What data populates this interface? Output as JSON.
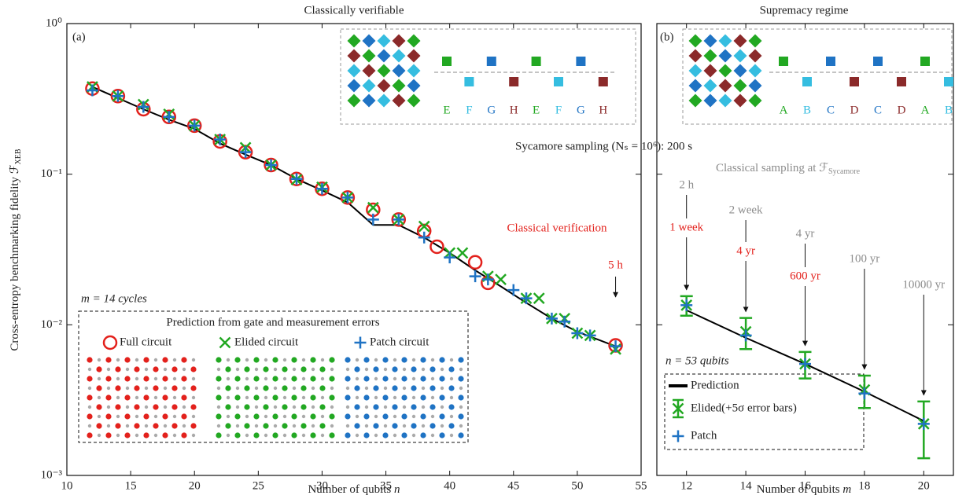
{
  "chart_data": [
    {
      "type": "scatter",
      "title": "Classically verifiable",
      "panel_label": "(a)",
      "x_label": "Number of qubits ",
      "x_label_var": "n",
      "y_label": "Cross-entropy benchmarking fidelity ℱ",
      "y_label_sub": "XEB",
      "xlim": [
        10,
        55
      ],
      "xticks": [
        10,
        15,
        20,
        25,
        30,
        35,
        40,
        45,
        50,
        55
      ],
      "ylim": [
        0.001,
        1
      ],
      "log_y": true,
      "yticks": [
        {
          "value": 0.001,
          "label": "10⁻³"
        },
        {
          "value": 0.01,
          "label": "10⁻²"
        },
        {
          "value": 0.1,
          "label": "10⁻¹"
        },
        {
          "value": 1,
          "label": "10⁰"
        }
      ],
      "series": [
        {
          "name": "Full circuit",
          "marker": "circle",
          "color": "#e3211c",
          "x": [
            12,
            14,
            16,
            18,
            20,
            22,
            24,
            26,
            28,
            30,
            32,
            34,
            36,
            38,
            39,
            42,
            43,
            53
          ],
          "values": [
            0.37,
            0.33,
            0.27,
            0.24,
            0.21,
            0.165,
            0.14,
            0.115,
            0.093,
            0.08,
            0.07,
            0.058,
            0.05,
            0.042,
            0.033,
            0.026,
            0.019,
            0.0073
          ]
        },
        {
          "name": "Elided circuit",
          "marker": "x",
          "color": "#22a822",
          "x": [
            12,
            14,
            16,
            18,
            20,
            22,
            24,
            26,
            28,
            30,
            32,
            34,
            36,
            38,
            40,
            41,
            43,
            44,
            46,
            47,
            48,
            49,
            50,
            51,
            53
          ],
          "values": [
            0.38,
            0.33,
            0.29,
            0.25,
            0.21,
            0.17,
            0.15,
            0.115,
            0.092,
            0.082,
            0.07,
            0.06,
            0.05,
            0.045,
            0.03,
            0.03,
            0.021,
            0.02,
            0.015,
            0.015,
            0.011,
            0.011,
            0.0088,
            0.0085,
            0.0069
          ]
        },
        {
          "name": "Patch circuit",
          "marker": "plus",
          "color": "#1f73c4",
          "x": [
            12,
            14,
            16,
            18,
            20,
            22,
            24,
            26,
            28,
            30,
            32,
            34,
            36,
            38,
            40,
            42,
            43,
            45,
            46,
            48,
            49,
            50,
            51,
            53
          ],
          "values": [
            0.36,
            0.33,
            0.28,
            0.24,
            0.21,
            0.17,
            0.14,
            0.115,
            0.093,
            0.08,
            0.07,
            0.05,
            0.05,
            0.038,
            0.028,
            0.021,
            0.02,
            0.017,
            0.015,
            0.011,
            0.0105,
            0.0088,
            0.0085,
            0.0072
          ]
        }
      ],
      "prediction": {
        "color": "#000000",
        "x": [
          12,
          14,
          16,
          18,
          20,
          22,
          24,
          26,
          28,
          30,
          32,
          34,
          36,
          38,
          40,
          42,
          44,
          46,
          48,
          50,
          53
        ],
        "values": [
          0.38,
          0.32,
          0.27,
          0.23,
          0.2,
          0.16,
          0.135,
          0.115,
          0.093,
          0.078,
          0.065,
          0.046,
          0.046,
          0.038,
          0.03,
          0.023,
          0.018,
          0.014,
          0.011,
          0.009,
          0.0072
        ]
      },
      "annotation": "Classical verification",
      "annotation_color": "#e3211c",
      "arrow_label": "5 h",
      "arrow_x": 53,
      "cycles_label": "m = 14 cycles",
      "legend_title": "Prediction from gate and measurement errors",
      "inset_letters": [
        "E",
        "F",
        "G",
        "H",
        "E",
        "F",
        "G",
        "H"
      ],
      "inset_letter_colors": [
        "#22a822",
        "#35bde0",
        "#1f73c4",
        "#8b2a2a",
        "#22a822",
        "#35bde0",
        "#1f73c4",
        "#8b2a2a"
      ]
    },
    {
      "type": "scatter",
      "title": "Supremacy regime",
      "panel_label": "(b)",
      "x_label": "Number of qubits ",
      "x_label_var": "m",
      "xlim": [
        11,
        21
      ],
      "xticks": [
        12,
        14,
        16,
        18,
        20
      ],
      "sharey": true,
      "series": [
        {
          "name": "Prediction",
          "marker": "line",
          "color": "#000000",
          "x": [
            12,
            14,
            16,
            18,
            20
          ],
          "values": [
            0.0125,
            0.0082,
            0.0055,
            0.0036,
            0.0023
          ]
        },
        {
          "name": "Elided(+5σ error bars)",
          "marker": "x",
          "color": "#22a822",
          "x": [
            12,
            14,
            16,
            18,
            20
          ],
          "values": [
            0.0135,
            0.009,
            0.0055,
            0.0037,
            0.0022
          ],
          "errors": [
            0.002,
            0.0021,
            0.0011,
            0.0009,
            0.0009
          ]
        },
        {
          "name": "Patch",
          "marker": "plus",
          "color": "#1f73c4",
          "x": [
            12,
            14,
            16,
            18,
            20
          ],
          "values": [
            0.0135,
            0.0085,
            0.0055,
            0.0035,
            0.0022
          ]
        }
      ],
      "sampling_label": "Sycamore sampling (Nₛ = 10⁶): 200 s",
      "classical_label": "Classical sampling at ℱ",
      "classical_label_sub": "Sycamore",
      "time_labels": [
        "2 h",
        "2 week",
        "4 yr",
        "100 yr",
        "10000 yr"
      ],
      "time_labels_color": "#8c8c8c",
      "verification_labels": [
        "1 week",
        "4 yr",
        "600 yr",
        null,
        null
      ],
      "verification_color": "#e3211c",
      "qubits_label": "n = 53 qubits",
      "inset_letters": [
        "A",
        "B",
        "C",
        "D",
        "C",
        "D",
        "A",
        "B"
      ],
      "inset_letter_colors": [
        "#22a822",
        "#35bde0",
        "#1f73c4",
        "#8b2a2a",
        "#1f73c4",
        "#8b2a2a",
        "#22a822",
        "#35bde0"
      ]
    }
  ]
}
